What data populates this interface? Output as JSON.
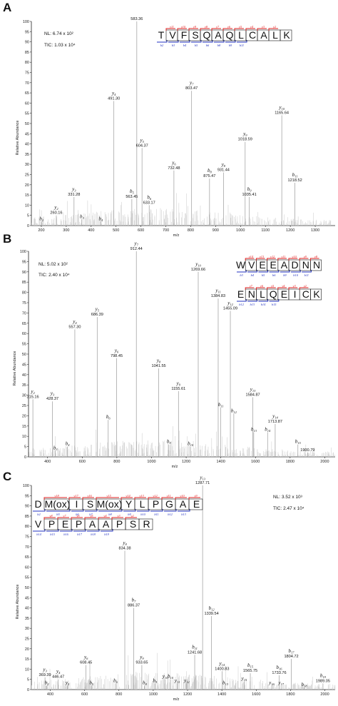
{
  "chart_data": [
    {
      "type": "bar",
      "panel_letter": "A",
      "xlabel": "m/z",
      "ylabel": "Relative Abundance",
      "xlim": [
        160,
        1380
      ],
      "ylim": [
        0,
        100
      ],
      "xticks": [
        200,
        300,
        400,
        500,
        600,
        700,
        800,
        900,
        1000,
        1100,
        1200,
        1300
      ],
      "yticks": [
        0,
        5,
        10,
        15,
        20,
        25,
        30,
        35,
        40,
        45,
        50,
        55,
        60,
        65,
        70,
        75,
        80,
        85,
        90,
        95,
        100
      ],
      "info": [
        "NL: 6.74 x 10²",
        "TIC: 1.03 x 10⁴"
      ],
      "sequence": {
        "rows": [
          [
            "T",
            "V",
            "F",
            "S",
            "Q",
            "A",
            "Q",
            "L",
            "C",
            "A",
            "L",
            "K"
          ]
        ],
        "y_labels": [
          "y11",
          "y10",
          "y9",
          "y8",
          "y7",
          "y6",
          "y5",
          "y4",
          "y3",
          "y2"
        ],
        "b_labels": [
          "b2",
          "b3",
          "b4",
          "b5",
          "b6",
          "b8",
          "b9",
          "b11"
        ]
      },
      "peaks": [
        {
          "mz": 200.5,
          "y": 2,
          "ion": "b2",
          "value_label": ""
        },
        {
          "mz": 260.16,
          "y": 5,
          "ion": "y2",
          "value_label": "260.16"
        },
        {
          "mz": 331.28,
          "y": 14,
          "ion": "y3",
          "value_label": "331.28"
        },
        {
          "mz": 363,
          "y": 3,
          "ion": "b3",
          "value_label": ""
        },
        {
          "mz": 439,
          "y": 2,
          "ion": "b4",
          "value_label": ""
        },
        {
          "mz": 491.3,
          "y": 61,
          "ion": "y4",
          "value_label": "491.30"
        },
        {
          "mz": 563.45,
          "y": 13,
          "ion": "b5",
          "value_label": "563.45"
        },
        {
          "mz": 583.36,
          "y": 100,
          "ion": "",
          "value_label": "583.36"
        },
        {
          "mz": 604.37,
          "y": 38,
          "ion": "y5",
          "value_label": "604.37"
        },
        {
          "mz": 633.17,
          "y": 10,
          "ion": "b6",
          "value_label": "633.17"
        },
        {
          "mz": 732.48,
          "y": 27,
          "ion": "y6",
          "value_label": "732.48"
        },
        {
          "mz": 803.47,
          "y": 66,
          "ion": "y7",
          "value_label": "803.47"
        },
        {
          "mz": 875.47,
          "y": 23,
          "ion": "b8",
          "value_label": "875.47"
        },
        {
          "mz": 931.44,
          "y": 26,
          "ion": "y8",
          "value_label": "931.44"
        },
        {
          "mz": 1018.59,
          "y": 41,
          "ion": "y9",
          "value_label": "1018.59"
        },
        {
          "mz": 1035.41,
          "y": 14,
          "ion": "b9",
          "value_label": "1035.41"
        },
        {
          "mz": 1165.64,
          "y": 54,
          "ion": "y10",
          "value_label": "1165.64"
        },
        {
          "mz": 1218.52,
          "y": 21,
          "ion": "b11",
          "value_label": "1218.52"
        }
      ]
    },
    {
      "type": "bar",
      "panel_letter": "B",
      "xlabel": "m/z",
      "ylabel": "Relative Abundance",
      "xlim": [
        290,
        2060
      ],
      "ylim": [
        0,
        100
      ],
      "xticks": [
        400,
        600,
        800,
        1000,
        1200,
        1400,
        1600,
        1800,
        2000
      ],
      "yticks": [
        0,
        5,
        10,
        15,
        20,
        25,
        30,
        35,
        40,
        45,
        50,
        55,
        60,
        65,
        70,
        75,
        80,
        85,
        90,
        95,
        100
      ],
      "info": [
        "NL: 5.02 x 10²",
        "TIC: 2.40 x 10⁴"
      ],
      "sequence": {
        "rows": [
          [
            "W",
            "V",
            "E",
            "E",
            "A",
            "D",
            "N",
            "N"
          ],
          [
            "E",
            "N",
            "L",
            "Q",
            "E",
            "I",
            "C",
            "K"
          ]
        ],
        "y_labels": [
          "y14",
          "y13",
          "y12",
          "y11",
          "y10",
          "y9",
          "y8",
          "y7",
          "y6",
          "y5",
          "y4",
          "y3",
          "y2"
        ],
        "b_labels": [
          "b3",
          "b4",
          "b5",
          "b6",
          "b9",
          "b10",
          "b11",
          "b12",
          "b13",
          "b14",
          "b15"
        ]
      },
      "peaks": [
        {
          "mz": 315.16,
          "y": 28,
          "ion": "y2",
          "value_label": "315.16"
        },
        {
          "mz": 428.37,
          "y": 27,
          "ion": "y3",
          "value_label": "428.37"
        },
        {
          "mz": 445,
          "y": 3,
          "ion": "b3",
          "value_label": ""
        },
        {
          "mz": 515,
          "y": 5,
          "ion": "b4",
          "value_label": ""
        },
        {
          "mz": 557.3,
          "y": 62,
          "ion": "y4",
          "value_label": "557.30"
        },
        {
          "mz": 686.39,
          "y": 68,
          "ion": "y5",
          "value_label": "686.39"
        },
        {
          "mz": 750,
          "y": 18,
          "ion": "b6",
          "value_label": ""
        },
        {
          "mz": 798.45,
          "y": 48,
          "ion": "y6",
          "value_label": "798.45"
        },
        {
          "mz": 912.44,
          "y": 100,
          "ion": "y7",
          "value_label": "912.44"
        },
        {
          "mz": 1041.55,
          "y": 43,
          "ion": "y8",
          "value_label": "1041.55"
        },
        {
          "mz": 1100,
          "y": 6,
          "ion": "b9",
          "value_label": ""
        },
        {
          "mz": 1155.61,
          "y": 32,
          "ion": "y9",
          "value_label": "1155.61"
        },
        {
          "mz": 1225,
          "y": 5,
          "ion": "b10",
          "value_label": ""
        },
        {
          "mz": 1269.66,
          "y": 90,
          "ion": "y10",
          "value_label": "1269.66"
        },
        {
          "mz": 1384.83,
          "y": 77,
          "ion": "y11",
          "value_label": "1384.83"
        },
        {
          "mz": 1400,
          "y": 24,
          "ion": "b11",
          "value_label": ""
        },
        {
          "mz": 1455.09,
          "y": 71,
          "ion": "y12",
          "value_label": "1455.09"
        },
        {
          "mz": 1475,
          "y": 21,
          "ion": "b12",
          "value_label": ""
        },
        {
          "mz": 1584.87,
          "y": 29,
          "ion": "y13",
          "value_label": "1584.87"
        },
        {
          "mz": 1590,
          "y": 12,
          "ion": "b13",
          "value_label": ""
        },
        {
          "mz": 1670,
          "y": 12,
          "ion": "b14",
          "value_label": ""
        },
        {
          "mz": 1713.87,
          "y": 16,
          "ion": "y14",
          "value_label": "1713.87"
        },
        {
          "mz": 1845,
          "y": 6,
          "ion": "b15",
          "value_label": ""
        },
        {
          "mz": 1900.79,
          "y": 2,
          "ion": "",
          "value_label": "1900.79"
        }
      ]
    },
    {
      "type": "bar",
      "panel_letter": "C",
      "xlabel": "m/z",
      "ylabel": "Relative Abundance",
      "xlim": [
        290,
        2060
      ],
      "ylim": [
        0,
        100
      ],
      "xticks": [
        400,
        600,
        800,
        1000,
        1200,
        1400,
        1600,
        1800,
        2000
      ],
      "yticks": [
        0,
        5,
        10,
        15,
        20,
        25,
        30,
        35,
        40,
        45,
        50,
        55,
        60,
        65,
        70,
        75,
        80,
        85,
        90,
        95,
        100
      ],
      "info": [
        "NL: 3.52 x 10³",
        "TIC: 2.47 x 10⁴"
      ],
      "sequence": {
        "rows": [
          [
            "D",
            "M(ox)",
            "I",
            "S",
            "M(ox)",
            "Y",
            "L",
            "P",
            "G",
            "A",
            "E"
          ],
          [
            "V",
            "P",
            "E",
            "P",
            "A",
            "A",
            "P",
            "S",
            "R"
          ]
        ],
        "y_labels": [
          "y18",
          "y17",
          "y16",
          "y15",
          "y14",
          "y13",
          "y12",
          "y11",
          "y10",
          "y9",
          "y8",
          "y7",
          "y6",
          "y5",
          "y4",
          "y3",
          "y2"
        ],
        "b_labels": [
          "b2",
          "b5",
          "b6",
          "b7",
          "b8",
          "b9",
          "b10",
          "b11",
          "b12",
          "b13",
          "b14",
          "b15",
          "b16",
          "b17",
          "b18",
          "b19"
        ]
      },
      "peaks": [
        {
          "mz": 369.39,
          "y": 6,
          "ion": "y3",
          "value_label": "369.39"
        },
        {
          "mz": 380,
          "y": 2,
          "ion": "b2",
          "value_label": ""
        },
        {
          "mz": 446.47,
          "y": 5,
          "ion": "y4",
          "value_label": "446.47"
        },
        {
          "mz": 500,
          "y": 2,
          "ion": "y5",
          "value_label": ""
        },
        {
          "mz": 608.45,
          "y": 12,
          "ion": "y6",
          "value_label": "608.45"
        },
        {
          "mz": 640,
          "y": 2,
          "ion": "b5",
          "value_label": ""
        },
        {
          "mz": 780,
          "y": 3,
          "ion": "b6",
          "value_label": ""
        },
        {
          "mz": 834.38,
          "y": 68,
          "ion": "y8",
          "value_label": "834.38"
        },
        {
          "mz": 886.37,
          "y": 40,
          "ion": "b7",
          "value_label": "886.37"
        },
        {
          "mz": 933.65,
          "y": 12,
          "ion": "y9",
          "value_label": "933.65"
        },
        {
          "mz": 950,
          "y": 2,
          "ion": "b8",
          "value_label": ""
        },
        {
          "mz": 1010,
          "y": 3,
          "ion": "b9",
          "value_label": ""
        },
        {
          "mz": 1070,
          "y": 5,
          "ion": "y10",
          "value_label": ""
        },
        {
          "mz": 1100,
          "y": 5,
          "ion": "b10",
          "value_label": ""
        },
        {
          "mz": 1140,
          "y": 3,
          "ion": "y11",
          "value_label": ""
        },
        {
          "mz": 1195,
          "y": 3,
          "ion": "y12",
          "value_label": ""
        },
        {
          "mz": 1241.68,
          "y": 17,
          "ion": "b11",
          "value_label": "1241.68"
        },
        {
          "mz": 1287.71,
          "y": 100,
          "ion": "y13",
          "value_label": "1287.71"
        },
        {
          "mz": 1339.54,
          "y": 36,
          "ion": "b12",
          "value_label": "1339.54"
        },
        {
          "mz": 1400.83,
          "y": 9,
          "ion": "y14",
          "value_label": "1400.83"
        },
        {
          "mz": 1420,
          "y": 2,
          "ion": "b13",
          "value_label": ""
        },
        {
          "mz": 1530,
          "y": 4,
          "ion": "y15",
          "value_label": ""
        },
        {
          "mz": 1565.75,
          "y": 8,
          "ion": "b15",
          "value_label": "1565.75"
        },
        {
          "mz": 1690,
          "y": 2,
          "ion": "y16",
          "value_label": ""
        },
        {
          "mz": 1733.76,
          "y": 7,
          "ion": "b16",
          "value_label": "1733.76"
        },
        {
          "mz": 1745,
          "y": 2,
          "ion": "y17",
          "value_label": ""
        },
        {
          "mz": 1804.72,
          "y": 15,
          "ion": "b17",
          "value_label": "1804.72"
        },
        {
          "mz": 1880,
          "y": 1,
          "ion": "b18",
          "value_label": ""
        },
        {
          "mz": 1989.05,
          "y": 3,
          "ion": "b19",
          "value_label": "1989.05"
        }
      ]
    }
  ]
}
